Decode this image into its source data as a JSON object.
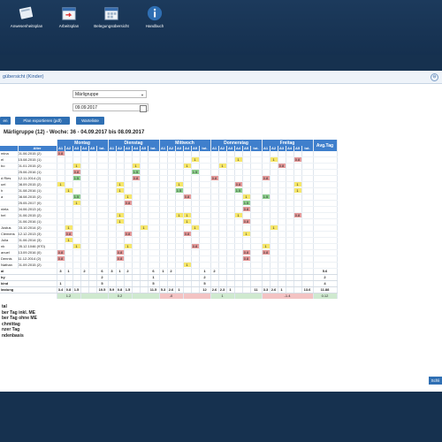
{
  "toolbar": {
    "items": [
      {
        "label": "Anwesenheitsplan",
        "icon": "attendance-icon"
      },
      {
        "label": "Arbeitsplan",
        "icon": "workplan-icon"
      },
      {
        "label": "Belegungsübersicht",
        "icon": "calendar-icon"
      },
      {
        "label": "Handbuch",
        "icon": "info-icon"
      }
    ]
  },
  "panel": {
    "title": "gübersicht (Kinder)",
    "group_select": "Märligruppe",
    "date_value": "09.09.2017",
    "buttons": {
      "first": "en",
      "export": "Plan exportieren (pdf)",
      "waitlist": "Warteliste"
    },
    "week_title": "Märligruppe (12) - Woche: 36 - 04.09.2017 bis 08.09.2017",
    "avg_label": "Avg.Tag",
    "close_label": "Schli"
  },
  "table": {
    "name_header": "",
    "age_header": "Alter",
    "days": [
      "Montag",
      "Dienstag",
      "Mittwoch",
      "Donnerstag",
      "Freitag"
    ],
    "sub_headers": [
      "A1",
      "A2",
      "A3",
      "A4",
      "A5",
      "tot."
    ],
    "children": [
      {
        "name": "mina",
        "age": "01.06.2015 (2)",
        "marks": {
          "0": "0.8"
        }
      },
      {
        "name": "el",
        "age": "15.08.2015 (1)",
        "marks": {
          "14": "1",
          "18": "1",
          "21": "1",
          "24": "0.8",
          "25": "0.8"
        }
      },
      {
        "name": "bo",
        "age": "01.01.2015 (2)",
        "marks": {
          "2": "1",
          "8": "1",
          "13": "1",
          "16": "1",
          "22": "0.8"
        }
      },
      {
        "name": "",
        "age": "25.06.2016 (1)",
        "marks": {
          "2": "0.8",
          "8": "1.5",
          "14": "1.5"
        }
      },
      {
        "name": "d Ries",
        "age": "12.11.2014 (2)",
        "marks": {
          "2": "1.5",
          "8": "0.8",
          "15": "0.8",
          "20": "0.8"
        }
      },
      {
        "name": "uel",
        "age": "08.09.2015 (2)",
        "marks": {
          "0": "1",
          "6": "1",
          "12": "1",
          "18": "0.8",
          "24": "1"
        }
      },
      {
        "name": "h",
        "age": "01.08.2016 (1)",
        "marks": {
          "1": "1",
          "6": "1",
          "12": "1.5",
          "18": "1.5",
          "24": "1"
        }
      },
      {
        "name": "a",
        "age": "08.08.2015 (2)",
        "marks": {
          "2": "1.5",
          "7": "1",
          "13": "0.8",
          "19": "1",
          "20": "1.5",
          "25": "1",
          "26": "1"
        }
      },
      {
        "name": "",
        "age": "25.05.2017 (0)",
        "marks": {
          "2": "1",
          "7": "0.8",
          "19": "1.5",
          "25": "1"
        }
      },
      {
        "name": "niela",
        "age": "04.06.2013 (4)",
        "marks": {
          "19": "0.8"
        }
      },
      {
        "name": "hel",
        "age": "01.06.2015 (2)",
        "marks": {
          "6": "1",
          "12": "1",
          "13": "1",
          "18": "1",
          "24": "0.8"
        }
      },
      {
        "name": "",
        "age": "01.06.2016 (1)",
        "marks": {
          "6": "1",
          "13": "1",
          "19": "0.8"
        }
      },
      {
        "name": "Justus",
        "age": "03.10.2014 (2)",
        "marks": {
          "1": "1",
          "9": "1",
          "14": "1",
          "21": "1"
        }
      },
      {
        "name": "Clemens",
        "age": "12.12.2013 (3)",
        "marks": {
          "1": "0.8",
          "7": "0.8",
          "13": "0.8",
          "19": "1",
          "25": "0.8"
        }
      },
      {
        "name": "Julia",
        "age": "01.06.2014 (3)",
        "marks": {
          "1": "1"
        }
      },
      {
        "name": "nk",
        "age": "05.12.1046 (970)",
        "marks": {
          "2": "1",
          "7": "1",
          "14": "0.8",
          "20": "1",
          "25": "0.8"
        }
      },
      {
        "name": "anuel",
        "age": "13.09.2016 (0)",
        "marks": {
          "0": "0.8",
          "6": "0.8",
          "19": "0.8",
          "20": "0.8"
        }
      },
      {
        "name": "Dennis",
        "age": "11.12.2014 (2)",
        "marks": {
          "0": "0.8",
          "6": "0.8",
          "19": "0.8"
        }
      },
      {
        "name": "Nathan",
        "age": "01.09.2015 (2)",
        "marks": {
          "13": "1"
        }
      }
    ],
    "summary_rows": [
      {
        "label": "al",
        "cells": [
          "3",
          "1",
          "",
          "2",
          "",
          "6",
          "3",
          "1",
          "2",
          "",
          "",
          "6",
          "1",
          "2",
          "",
          "",
          "",
          "1",
          "2",
          "",
          "",
          "",
          "",
          "",
          "",
          "",
          "",
          "",
          "",
          ""
        ],
        "avg": "5.6"
      },
      {
        "label": "by",
        "cells": [
          "",
          "",
          "",
          "",
          "",
          "2",
          "",
          "",
          "",
          "",
          "",
          "1",
          "",
          "",
          "",
          "",
          "",
          "2",
          "",
          "",
          "",
          "",
          "",
          "",
          "",
          "",
          "",
          "",
          "",
          ""
        ],
        "avg": "2"
      },
      {
        "label": "kind",
        "cells": [
          "1",
          "",
          "",
          "",
          "",
          "5",
          "",
          "",
          "",
          "",
          "",
          "5",
          "",
          "",
          "",
          "",
          "",
          "5",
          "",
          "",
          "",
          "",
          "",
          "",
          "",
          "",
          "",
          "",
          "",
          ""
        ],
        "avg": "4"
      },
      {
        "label": "lastung",
        "cells": [
          "3.4",
          "0.8",
          "1.5",
          "",
          "",
          "10.5",
          "5.9",
          "0.8",
          "1.5",
          "",
          "",
          "11.5",
          "5.3",
          "2.6",
          "1",
          "",
          "",
          "12",
          "2.6",
          "2.3",
          "1",
          "",
          "",
          "11",
          "3.3",
          "2.6",
          "1",
          "",
          "",
          "13.6"
        ],
        "avg": "11.88"
      }
    ],
    "balance_row": {
      "cells": [
        "1.2",
        "",
        "0.2",
        "",
        "-0",
        "",
        "1",
        "",
        "-1.4"
      ],
      "avg": "0.12"
    }
  },
  "legend": [
    "tal",
    "ber Tag inkl. ME",
    "ber Tag ohne ME",
    "chmittag",
    "nzer Tag",
    "ndenbasis"
  ]
}
